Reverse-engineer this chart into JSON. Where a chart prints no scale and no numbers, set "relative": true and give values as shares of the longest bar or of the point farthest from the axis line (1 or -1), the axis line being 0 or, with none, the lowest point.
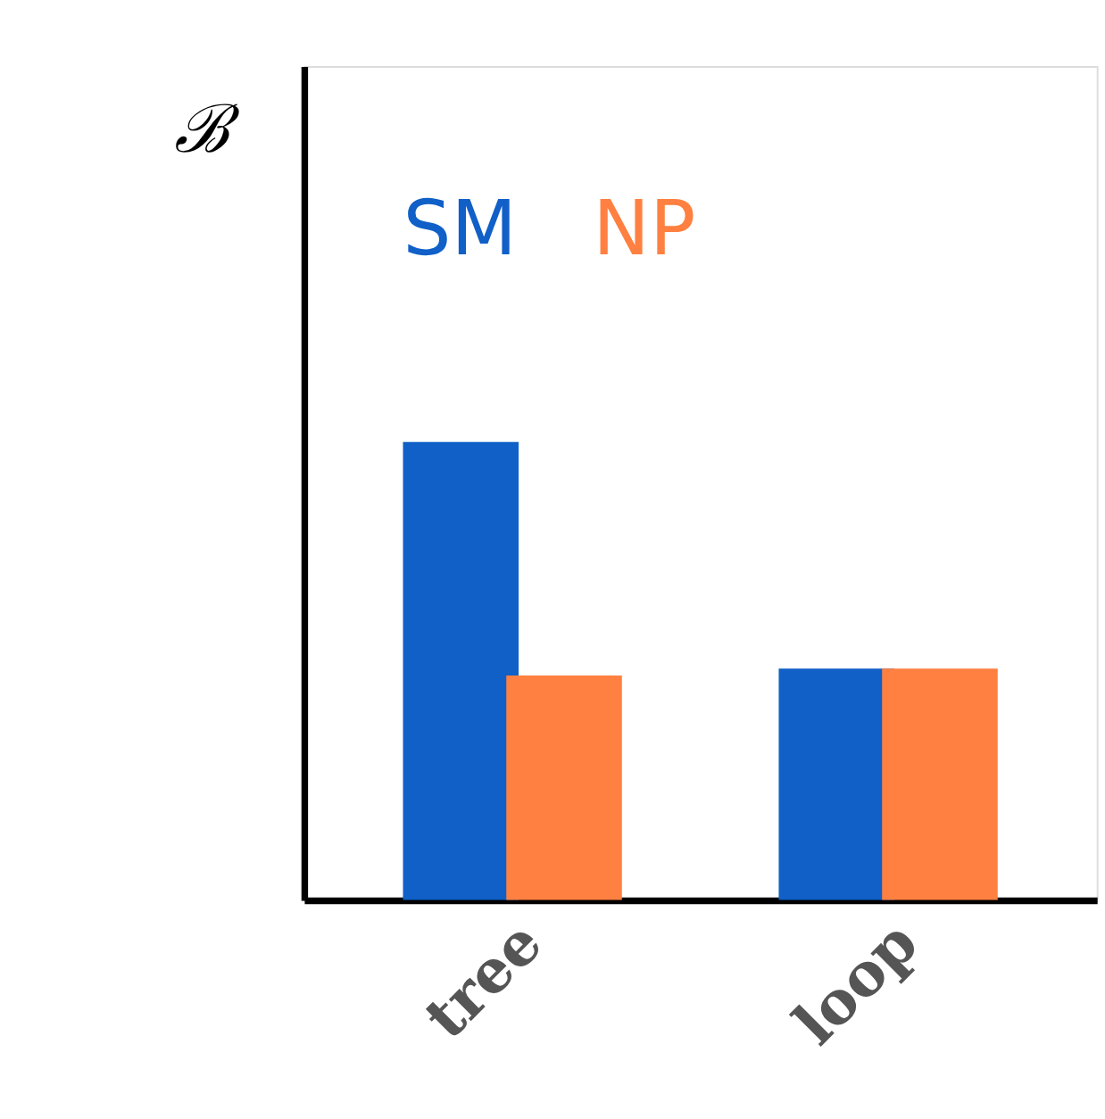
{
  "chart_data": {
    "type": "bar",
    "relative": true,
    "ylabel": "ℬ",
    "categories": [
      "tree",
      "loop"
    ],
    "series": [
      {
        "name": "SM",
        "color": "#1060c8",
        "values": [
          1,
          0.505
        ]
      },
      {
        "name": "NP",
        "color": "#ff8040",
        "values": [
          0.49,
          0.505
        ]
      }
    ],
    "legend": "top left",
    "grid": false
  }
}
